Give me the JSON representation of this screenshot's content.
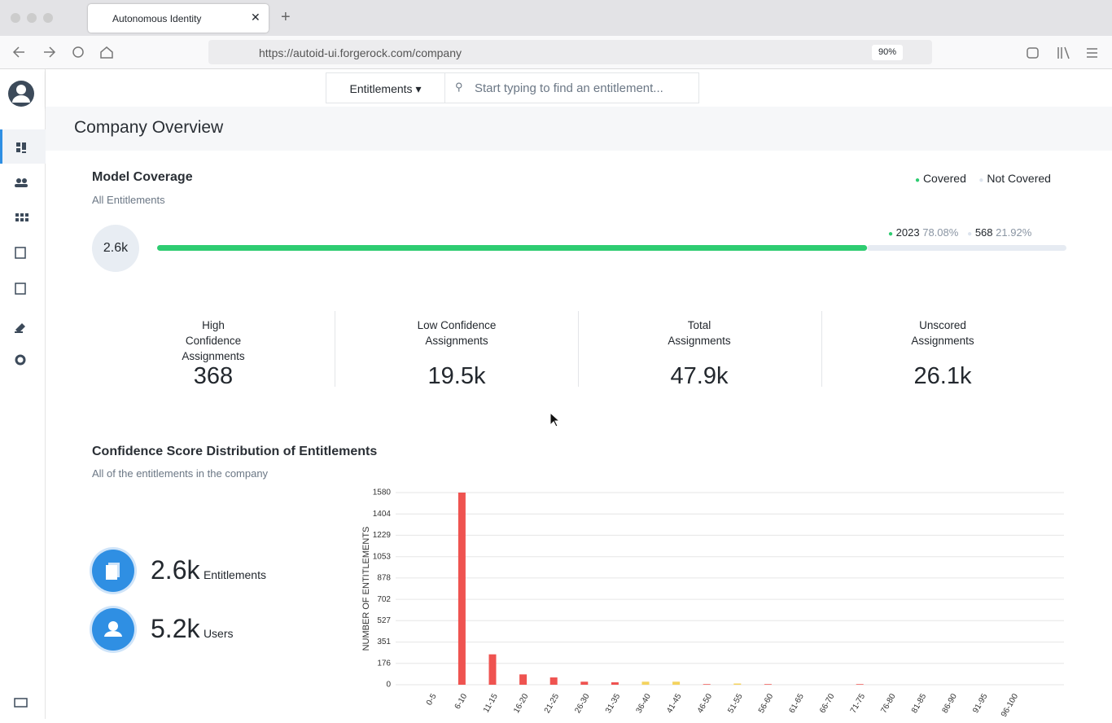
{
  "browser": {
    "tab_title": "Autonomous Identity",
    "url": "https://autoid-ui.forgerock.com/company",
    "zoom": "90%"
  },
  "header": {
    "dropdown": "Entitlements",
    "search_placeholder": "Start typing to find an entitlement..."
  },
  "page_title": "Company Overview",
  "model_coverage": {
    "title": "Model Coverage",
    "subtitle": "All Entitlements",
    "legend": [
      "Covered",
      "Not Covered"
    ],
    "total": "2.6k",
    "covered": {
      "count": 2023,
      "percent": "78.08%",
      "color": "#2ecc71"
    },
    "not_covered": {
      "count": 568,
      "percent": "21.92%",
      "color": "#e6ebf2"
    }
  },
  "stats": [
    {
      "label": "High Confidence Assignments",
      "value": "368"
    },
    {
      "label": "Low Confidence Assignments",
      "value": "19.5k"
    },
    {
      "label": "Total Assignments",
      "value": "47.9k"
    },
    {
      "label": "Unscored Assignments",
      "value": "26.1k"
    }
  ],
  "distribution": {
    "title": "Confidence Score Distribution of Entitlements",
    "subtitle": "All of the entitlements in the company",
    "summary": [
      {
        "value": "2.6k",
        "label": "Entitlements"
      },
      {
        "value": "5.2k",
        "label": "Users"
      }
    ]
  },
  "chart_data": {
    "type": "bar",
    "y_label": "NUMBER OF ENTITLEMENTS",
    "categories": [
      "0-5",
      "6-10",
      "11-15",
      "16-20",
      "21-25",
      "26-30",
      "31-35",
      "36-40",
      "41-45",
      "46-50",
      "51-55",
      "56-60",
      "61-65",
      "66-70",
      "71-75",
      "76-80",
      "81-85",
      "86-90",
      "91-95",
      "96-100"
    ],
    "values": [
      0,
      1580,
      250,
      85,
      60,
      25,
      20,
      25,
      25,
      5,
      10,
      5,
      0,
      0,
      5,
      0,
      0,
      0,
      0,
      0
    ],
    "colors": [
      "#ef5350",
      "#ef5350",
      "#ef5350",
      "#ef5350",
      "#ef5350",
      "#ef5350",
      "#ef5350",
      "#f4d35e",
      "#f4d35e",
      "#ef5350",
      "#f4d35e",
      "#ef5350",
      "#ef5350",
      "#ef5350",
      "#ef5350",
      "#ef5350",
      "#ef5350",
      "#ef5350",
      "#ef5350",
      "#ef5350"
    ],
    "ylim": [
      0,
      1580
    ],
    "yticks": [
      0,
      176,
      351,
      527,
      702,
      878,
      1053,
      1229,
      1404,
      1580
    ],
    "grid": true
  }
}
